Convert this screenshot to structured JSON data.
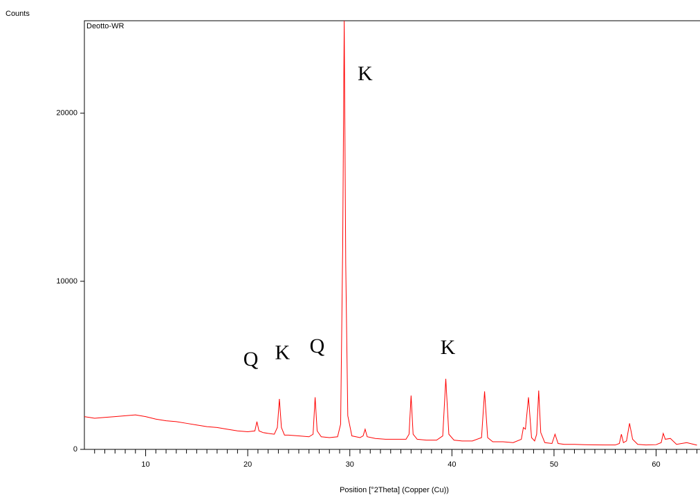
{
  "chart_data": {
    "type": "line",
    "y_label": "Counts",
    "x_label": "Position [°2Theta] (Copper (Cu))",
    "xlim": [
      4,
      64.3
    ],
    "ylim": [
      0,
      25500
    ],
    "xticks": [
      10,
      20,
      30,
      40,
      50,
      60
    ],
    "xminorticks": [
      5,
      6,
      7,
      8,
      9,
      11,
      12,
      13,
      14,
      15,
      16,
      17,
      18,
      19,
      21,
      22,
      23,
      24,
      25,
      26,
      27,
      28,
      29,
      31,
      32,
      33,
      34,
      35,
      36,
      37,
      38,
      39,
      41,
      42,
      43,
      44,
      45,
      46,
      47,
      48,
      49,
      51,
      52,
      53,
      54,
      55,
      56,
      57,
      58,
      59,
      61,
      62,
      63,
      64
    ],
    "yticks": [
      0,
      10000,
      20000
    ],
    "series": [
      {
        "name": "Deotto-WR",
        "color": "#ff0000",
        "x": [
          4,
          5,
          6,
          7,
          8,
          9,
          10,
          11,
          12,
          13,
          14,
          15,
          16,
          17,
          18,
          19,
          20,
          20.7,
          20.9,
          21.1,
          21.5,
          22,
          22.6,
          22.9,
          23.1,
          23.3,
          23.6,
          24,
          25,
          26,
          26.4,
          26.6,
          26.8,
          27.2,
          28,
          28.8,
          29.1,
          29.3,
          29.45,
          29.6,
          29.8,
          30.2,
          31,
          31.3,
          31.5,
          31.7,
          32.5,
          33.5,
          34.5,
          35.5,
          35.8,
          36,
          36.2,
          36.6,
          37.5,
          38.5,
          39.1,
          39.4,
          39.7,
          40.2,
          41,
          42,
          42.9,
          43.2,
          43.5,
          44,
          45,
          46,
          46.8,
          47,
          47.2,
          47.5,
          47.8,
          48.1,
          48.3,
          48.5,
          48.7,
          49.1,
          49.8,
          50.1,
          50.4,
          51,
          52,
          53,
          54,
          55,
          56,
          56.4,
          56.6,
          56.8,
          57.1,
          57.4,
          57.7,
          58.2,
          59,
          60,
          60.5,
          60.7,
          60.9,
          61.4,
          62,
          63,
          64
        ],
        "values": [
          1950,
          1850,
          1900,
          1950,
          2000,
          2050,
          1950,
          1800,
          1700,
          1650,
          1550,
          1450,
          1350,
          1300,
          1200,
          1100,
          1050,
          1100,
          1650,
          1100,
          1000,
          950,
          900,
          1300,
          3000,
          1300,
          850,
          850,
          800,
          750,
          900,
          3100,
          1100,
          750,
          700,
          750,
          1500,
          12000,
          25500,
          11000,
          2000,
          800,
          700,
          800,
          1200,
          750,
          650,
          600,
          600,
          600,
          900,
          3200,
          900,
          600,
          550,
          550,
          800,
          4200,
          900,
          550,
          500,
          500,
          700,
          3450,
          700,
          450,
          450,
          400,
          600,
          1300,
          1200,
          3100,
          700,
          500,
          900,
          3500,
          1000,
          400,
          350,
          900,
          350,
          300,
          300,
          280,
          270,
          260,
          260,
          350,
          900,
          400,
          500,
          1550,
          600,
          300,
          260,
          280,
          400,
          950,
          600,
          650,
          300,
          400,
          250
        ]
      }
    ],
    "annotations": [
      {
        "text": "Q",
        "x": 20.3,
        "y": 5250
      },
      {
        "text": "K",
        "x": 23.4,
        "y": 5650
      },
      {
        "text": "Q",
        "x": 26.8,
        "y": 6050
      },
      {
        "text": "K",
        "x": 31.5,
        "y": 22250
      },
      {
        "text": "K",
        "x": 39.6,
        "y": 5950
      }
    ]
  }
}
